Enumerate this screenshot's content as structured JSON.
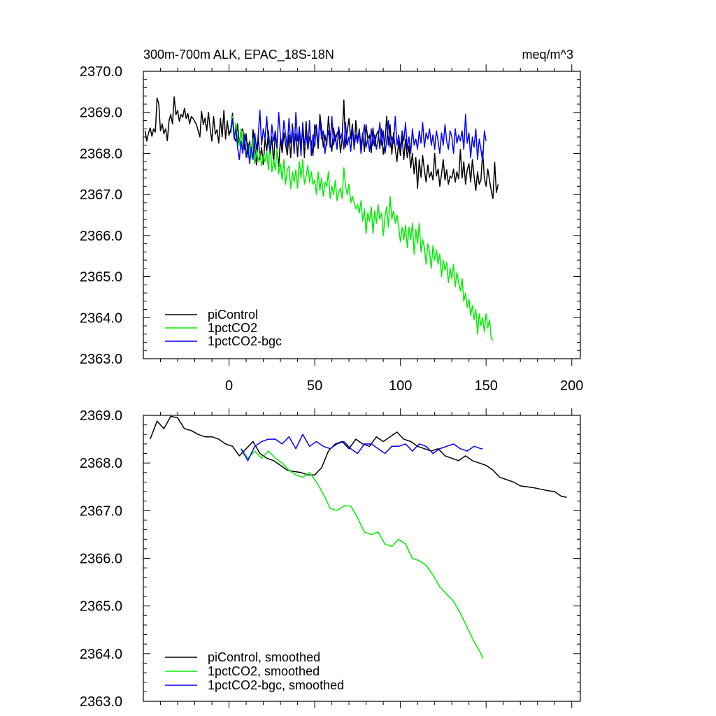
{
  "chart_data": [
    {
      "type": "line",
      "title": "300m-700m ALK, EPAC_18S-18N",
      "units": "meq/m^3",
      "xlim": [
        -50,
        205
      ],
      "ylim": [
        2363.0,
        2370.0
      ],
      "x_ticks": [
        0,
        50,
        100,
        150,
        200
      ],
      "x_tick_labels": [
        "0",
        "50",
        "100",
        "150",
        "200"
      ],
      "y_ticks": [
        2363,
        2364,
        2365,
        2366,
        2367,
        2368,
        2369,
        2370
      ],
      "y_tick_labels": [
        "2363.0",
        "2364.0",
        "2365.0",
        "2366.0",
        "2367.0",
        "2368.0",
        "2369.0",
        "2370.0"
      ],
      "legend_position": "bottom-left",
      "series": [
        {
          "name": "piControl",
          "color": "#000000",
          "x_start": -49,
          "x_step": 1,
          "values": [
            2368.55,
            2368.3,
            2368.5,
            2368.62,
            2368.42,
            2368.6,
            2368.52,
            2369.35,
            2369.2,
            2368.55,
            2368.72,
            2368.48,
            2368.6,
            2368.31,
            2368.8,
            2368.95,
            2368.72,
            2369.38,
            2368.94,
            2369.05,
            2368.78,
            2368.95,
            2368.88,
            2369.1,
            2368.85,
            2368.97,
            2368.72,
            2368.9,
            2368.85,
            2368.78,
            2368.7,
            2368.55,
            2368.4,
            2369.02,
            2368.7,
            2368.86,
            2368.55,
            2369.0,
            2368.6,
            2368.3,
            2368.9,
            2368.47,
            2368.58,
            2368.25,
            2368.85,
            2368.4,
            2369.05,
            2368.35,
            2368.79,
            2368.44,
            2368.6,
            2368.98,
            2368.37,
            2368.3,
            2368.72,
            2368.2,
            2368.55,
            2368.6,
            2368.1,
            2368.48,
            2367.95,
            2368.3,
            2367.9,
            2368.58,
            2368.18,
            2367.72,
            2368.45,
            2367.85,
            2368.15,
            2367.73,
            2368.35,
            2368.05,
            2368.55,
            2368.0,
            2368.4,
            2367.75,
            2368.5,
            2368.1,
            2367.68,
            2368.35,
            2368.02,
            2368.5,
            2368.22,
            2367.96,
            2368.45,
            2367.9,
            2368.72,
            2368.15,
            2368.48,
            2367.92,
            2368.65,
            2368.2,
            2368.55,
            2367.9,
            2368.78,
            2368.1,
            2368.4,
            2368.3,
            2367.95,
            2368.7,
            2368.55,
            2368.12,
            2368.95,
            2368.6,
            2368.15,
            2368.45,
            2368.2,
            2368.9,
            2368.35,
            2368.05,
            2368.62,
            2368.3,
            2368.48,
            2368.58,
            2368.02,
            2368.35,
            2369.3,
            2368.15,
            2368.55,
            2368.85,
            2368.35,
            2368.72,
            2368.1,
            2368.8,
            2368.28,
            2368.6,
            2368.15,
            2368.5,
            2368.05,
            2368.7,
            2368.35,
            2368.45,
            2368.02,
            2368.62,
            2368.18,
            2368.45,
            2368.55,
            2368.12,
            2368.6,
            2367.98,
            2368.3,
            2368.9,
            2368.2,
            2368.7,
            2367.98,
            2368.5,
            2368.12,
            2367.8,
            2368.3,
            2367.95,
            2368.42,
            2367.85,
            2368.35,
            2367.9,
            2368.18,
            2367.65,
            2368.0,
            2367.5,
            2367.9,
            2367.15,
            2367.85,
            2367.42,
            2367.95,
            2367.58,
            2367.3,
            2367.72,
            2367.42,
            2367.55,
            2367.35,
            2368.0,
            2367.45,
            2367.62,
            2367.2,
            2367.5,
            2367.85,
            2367.35,
            2367.6,
            2367.25,
            2367.45,
            2367.4,
            2367.62,
            2367.3,
            2367.55,
            2367.38,
            2368.1,
            2367.4,
            2367.8,
            2367.25,
            2367.6,
            2367.75,
            2367.3,
            2367.85,
            2367.45,
            2367.1,
            2367.55,
            2367.25,
            2367.35,
            2368.05,
            2367.4,
            2367.2,
            2367.62,
            2367.35,
            2367.1,
            2366.9,
            2367.78,
            2367.05,
            2367.25
          ]
        },
        {
          "name": "1pctCO2",
          "color": "#00ee00",
          "x_start": 1,
          "x_step": 1,
          "values": [
            2368.6,
            2368.9,
            2368.4,
            2368.75,
            2368.3,
            2368.2,
            2368.6,
            2368.1,
            2368.5,
            2368.0,
            2367.9,
            2368.2,
            2367.9,
            2368.35,
            2367.75,
            2368.1,
            2367.8,
            2368.0,
            2367.7,
            2367.95,
            2367.8,
            2368.05,
            2367.6,
            2368.3,
            2367.55,
            2367.85,
            2367.6,
            2368.1,
            2367.5,
            2367.75,
            2367.35,
            2367.85,
            2367.25,
            2367.6,
            2367.7,
            2367.15,
            2367.55,
            2367.3,
            2367.6,
            2367.15,
            2367.8,
            2367.4,
            2367.85,
            2367.25,
            2367.45,
            2367.7,
            2367.3,
            2367.55,
            2367.25,
            2367.35,
            2367.0,
            2367.55,
            2367.1,
            2367.4,
            2366.95,
            2367.3,
            2367.2,
            2367.55,
            2366.9,
            2367.2,
            2367.0,
            2367.35,
            2366.85,
            2367.05,
            2367.15,
            2366.9,
            2367.65,
            2367.2,
            2367.0,
            2367.25,
            2366.8,
            2366.95,
            2366.8,
            2366.65,
            2366.75,
            2366.55,
            2366.85,
            2366.35,
            2366.65,
            2366.05,
            2366.55,
            2366.35,
            2366.7,
            2366.05,
            2366.6,
            2366.3,
            2366.75,
            2366.4,
            2366.55,
            2366.0,
            2366.45,
            2366.7,
            2366.2,
            2366.95,
            2366.4,
            2366.6,
            2366.3,
            2366.5,
            2366.2,
            2365.85,
            2366.2,
            2365.9,
            2366.25,
            2365.7,
            2366.2,
            2365.9,
            2366.3,
            2365.55,
            2366.15,
            2365.8,
            2366.3,
            2365.6,
            2365.9,
            2365.7,
            2365.3,
            2365.8,
            2365.6,
            2365.2,
            2365.75,
            2365.4,
            2365.65,
            2365.3,
            2365.55,
            2365.0,
            2365.4,
            2365.15,
            2365.35,
            2364.85,
            2365.2,
            2364.95,
            2365.3,
            2364.75,
            2365.1,
            2364.85,
            2364.65,
            2364.95,
            2364.4,
            2364.6,
            2364.25,
            2364.45,
            2364.05,
            2364.3,
            2363.95,
            2364.2,
            2363.6,
            2364.1,
            2363.8,
            2364.0,
            2363.65,
            2364.1,
            2363.75,
            2363.95,
            2363.5,
            2363.45
          ]
        },
        {
          "name": "1pctCO2-bgc",
          "color": "#0000ff",
          "x_start": 1,
          "x_step": 1,
          "values": [
            2368.5,
            2368.85,
            2368.35,
            2368.6,
            2368.15,
            2367.85,
            2368.3,
            2368.0,
            2368.45,
            2367.9,
            2368.25,
            2367.75,
            2368.15,
            2367.85,
            2368.5,
            2368.1,
            2368.4,
            2369.05,
            2368.2,
            2368.6,
            2368.35,
            2368.9,
            2368.25,
            2368.05,
            2368.7,
            2368.3,
            2368.55,
            2368.15,
            2369.0,
            2368.4,
            2368.2,
            2368.8,
            2368.45,
            2368.15,
            2368.85,
            2368.25,
            2368.6,
            2368.0,
            2369.0,
            2368.3,
            2368.55,
            2367.95,
            2368.75,
            2368.2,
            2368.5,
            2368.1,
            2368.8,
            2367.95,
            2368.45,
            2368.15,
            2368.7,
            2368.2,
            2368.85,
            2368.35,
            2368.55,
            2368.0,
            2368.35,
            2368.55,
            2368.15,
            2368.9,
            2368.2,
            2368.45,
            2368.1,
            2368.65,
            2368.35,
            2368.5,
            2368.1,
            2368.75,
            2368.2,
            2368.4,
            2368.05,
            2368.6,
            2368.15,
            2368.45,
            2368.25,
            2368.55,
            2368.0,
            2368.4,
            2368.7,
            2368.15,
            2368.35,
            2368.05,
            2368.6,
            2368.2,
            2368.45,
            2368.1,
            2368.35,
            2368.75,
            2368.2,
            2368.55,
            2368.0,
            2368.3,
            2368.8,
            2368.15,
            2368.4,
            2368.25,
            2368.9,
            2368.2,
            2368.45,
            2368.1,
            2368.55,
            2368.3,
            2368.75,
            2368.1,
            2368.4,
            2368.0,
            2368.6,
            2368.2,
            2368.35,
            2368.1,
            2368.55,
            2368.25,
            2368.75,
            2368.15,
            2368.5,
            2368.35,
            2368.6,
            2368.2,
            2368.45,
            2368.1,
            2368.55,
            2368.3,
            2368.0,
            2368.5,
            2368.2,
            2368.7,
            2368.3,
            2368.1,
            2368.55,
            2368.4,
            2368.0,
            2368.6,
            2368.25,
            2368.45,
            2368.3,
            2368.55,
            2368.1,
            2368.95,
            2368.25,
            2368.5,
            2367.9,
            2368.4,
            2368.15,
            2368.6,
            2367.85,
            2368.35,
            2368.1,
            2367.8,
            2368.55,
            2368.3
          ]
        }
      ]
    },
    {
      "type": "line",
      "xlim": [
        -50,
        205
      ],
      "ylim": [
        2363.0,
        2369.0
      ],
      "x_ticks": [
        0,
        50,
        100,
        150,
        200
      ],
      "y_ticks": [
        2363,
        2364,
        2365,
        2366,
        2367,
        2368,
        2369
      ],
      "y_tick_labels": [
        "2363.0",
        "2364.0",
        "2365.0",
        "2366.0",
        "2367.0",
        "2368.0",
        "2369.0"
      ],
      "legend_position": "bottom-left",
      "series": [
        {
          "name": "piControl, smoothed",
          "color": "#000000",
          "x": [
            -46,
            -42,
            -38,
            -34,
            -30,
            -26,
            -22,
            -18,
            -14,
            -10,
            -6,
            -2,
            2,
            6,
            10,
            14,
            18,
            22,
            26,
            30,
            34,
            38,
            42,
            46,
            50,
            54,
            58,
            62,
            66,
            70,
            74,
            78,
            82,
            86,
            90,
            94,
            98,
            102,
            106,
            110,
            114,
            118,
            122,
            126,
            130,
            134,
            138,
            142,
            146,
            150,
            154,
            158,
            162,
            166,
            170,
            174,
            178,
            182,
            186,
            190,
            194,
            197
          ],
          "values": [
            2368.5,
            2368.88,
            2368.72,
            2368.98,
            2368.95,
            2368.72,
            2368.68,
            2368.6,
            2368.55,
            2368.55,
            2368.5,
            2368.4,
            2368.35,
            2368.15,
            2368.3,
            2368.45,
            2368.2,
            2368.1,
            2368.05,
            2367.95,
            2367.85,
            2367.82,
            2367.8,
            2367.75,
            2367.75,
            2367.9,
            2368.25,
            2368.4,
            2368.45,
            2368.3,
            2368.5,
            2368.4,
            2368.35,
            2368.55,
            2368.45,
            2368.55,
            2368.65,
            2368.5,
            2368.45,
            2368.35,
            2368.3,
            2368.25,
            2368.3,
            2368.15,
            2368.1,
            2368.05,
            2368.15,
            2368.05,
            2368.0,
            2367.95,
            2367.85,
            2367.7,
            2367.65,
            2367.6,
            2367.52,
            2367.5,
            2367.48,
            2367.45,
            2367.42,
            2367.4,
            2367.3,
            2367.28
          ]
        },
        {
          "name": "1pctCO2, smoothed",
          "color": "#00ee00",
          "x": [
            7,
            11,
            15,
            19,
            23,
            27,
            31,
            35,
            39,
            43,
            47,
            51,
            55,
            59,
            63,
            67,
            71,
            75,
            79,
            83,
            87,
            91,
            95,
            99,
            103,
            107,
            111,
            115,
            119,
            123,
            127,
            131,
            135,
            139,
            143,
            147,
            148
          ],
          "values": [
            2368.3,
            2368.1,
            2368.25,
            2368.1,
            2368.25,
            2368.1,
            2368.0,
            2367.85,
            2367.75,
            2367.7,
            2367.8,
            2367.6,
            2367.35,
            2367.05,
            2367.0,
            2367.1,
            2367.1,
            2366.85,
            2366.55,
            2366.5,
            2366.55,
            2366.3,
            2366.25,
            2366.4,
            2366.3,
            2366.0,
            2365.95,
            2365.85,
            2365.65,
            2365.4,
            2365.25,
            2365.1,
            2364.85,
            2364.55,
            2364.25,
            2364.0,
            2363.9
          ]
        },
        {
          "name": "1pctCO2-bgc, smoothed",
          "color": "#0000ff",
          "x": [
            7,
            11,
            15,
            19,
            23,
            27,
            31,
            35,
            39,
            43,
            47,
            51,
            55,
            59,
            63,
            67,
            71,
            75,
            79,
            83,
            87,
            91,
            95,
            99,
            103,
            107,
            111,
            115,
            119,
            123,
            127,
            131,
            135,
            139,
            143,
            147,
            148
          ],
          "values": [
            2368.3,
            2368.05,
            2368.35,
            2368.45,
            2368.5,
            2368.5,
            2368.4,
            2368.55,
            2368.3,
            2368.6,
            2368.35,
            2368.45,
            2368.35,
            2368.3,
            2368.4,
            2368.45,
            2368.3,
            2368.2,
            2368.4,
            2368.4,
            2368.3,
            2368.2,
            2368.35,
            2368.35,
            2368.4,
            2368.25,
            2368.4,
            2368.35,
            2368.2,
            2368.3,
            2368.35,
            2368.4,
            2368.3,
            2368.25,
            2368.35,
            2368.3,
            2368.3
          ]
        }
      ]
    }
  ]
}
